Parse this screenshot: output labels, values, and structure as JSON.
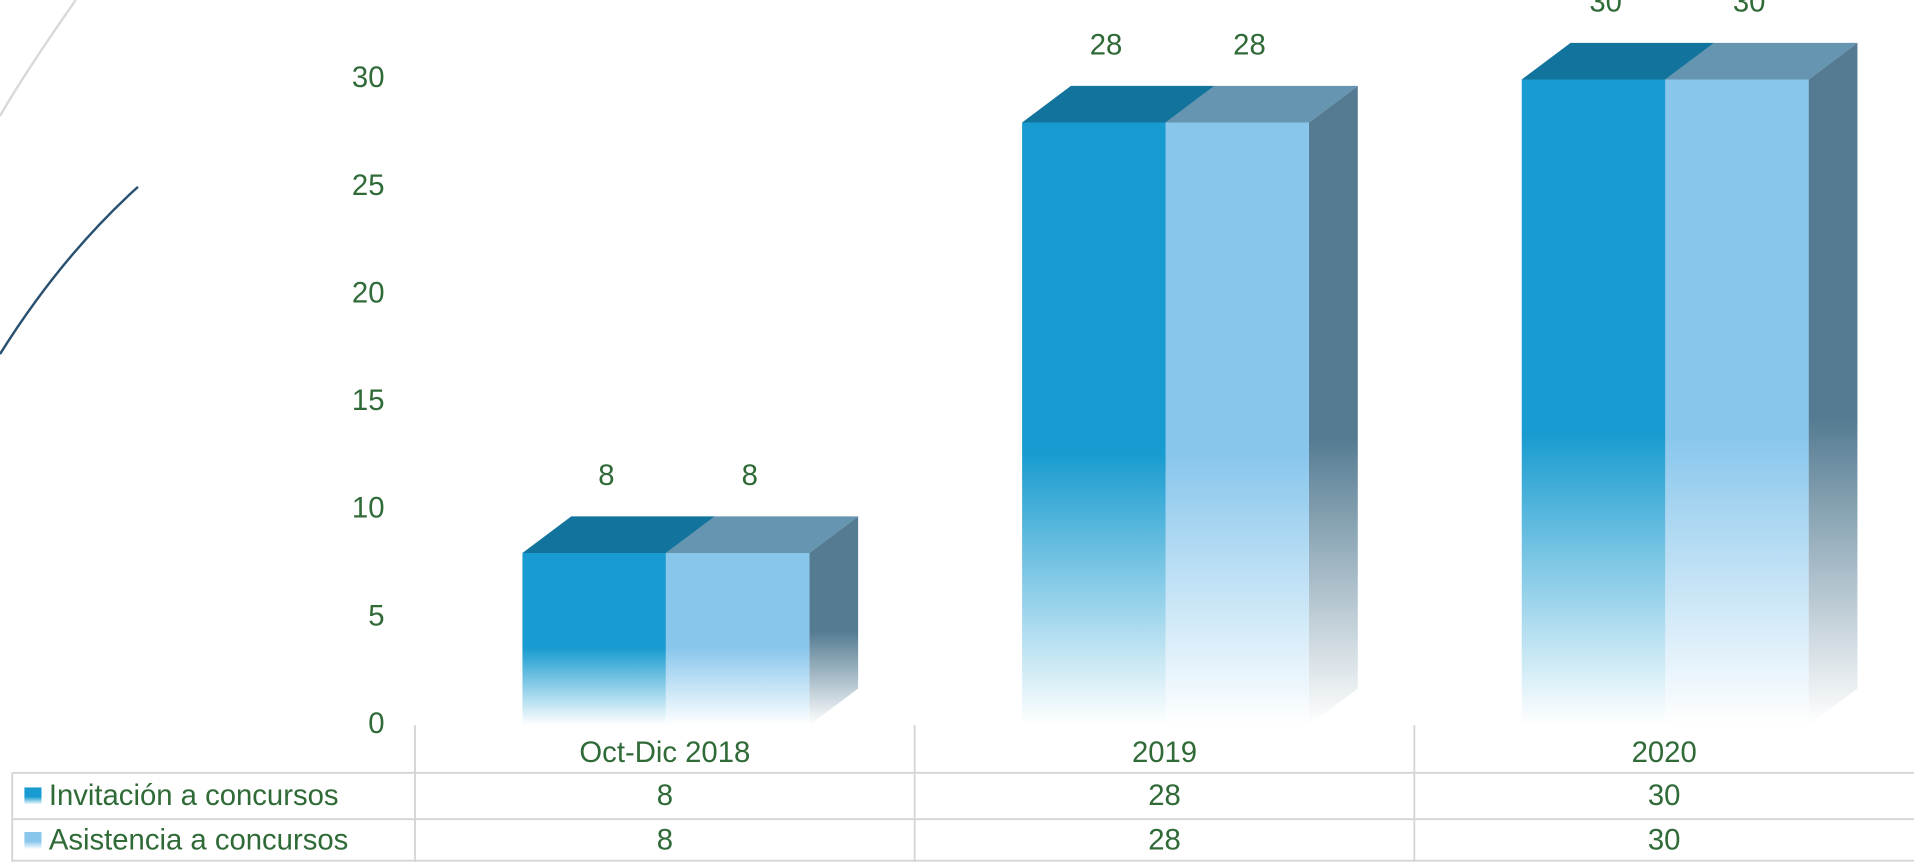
{
  "chart_data": {
    "type": "bar3d",
    "categories": [
      "Oct-Dic 2018",
      "2019",
      "2020"
    ],
    "series": [
      {
        "name": "Invitación a concursos",
        "color": "#189bd0",
        "values": [
          8,
          28,
          30
        ]
      },
      {
        "name": "Asistencia a concursos",
        "color": "#88c6ec",
        "values": [
          8,
          28,
          30
        ]
      }
    ],
    "ylim": [
      0,
      30
    ],
    "yticks": [
      0,
      5,
      10,
      15,
      20,
      25,
      30
    ],
    "data_table": true,
    "data_labels": true
  }
}
